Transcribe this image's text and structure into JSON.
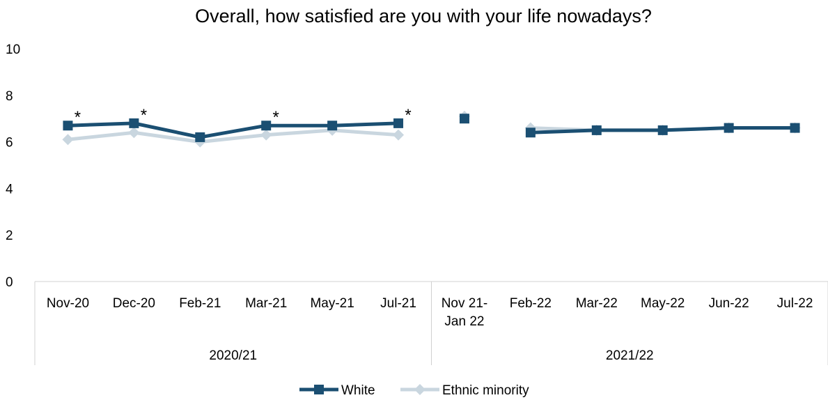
{
  "chart_data": {
    "type": "line",
    "title": "Overall, how satisfied are you with your life nowadays?",
    "xlabel": "",
    "ylabel": "",
    "ylim": [
      0,
      10
    ],
    "y_ticks": [
      "0",
      "2",
      "4",
      "6",
      "8",
      "10"
    ],
    "grid": false,
    "legend_position": "bottom",
    "categories": [
      [
        "Nov-20"
      ],
      [
        "Dec-20"
      ],
      [
        "Feb-21"
      ],
      [
        "Mar-21"
      ],
      [
        "May-21"
      ],
      [
        "Jul-21"
      ],
      [
        "Nov 21-",
        "Jan 22"
      ],
      [
        "Feb-22"
      ],
      [
        "Mar-22"
      ],
      [
        "May-22"
      ],
      [
        "Jun-22"
      ],
      [
        "Jul-22"
      ]
    ],
    "groups": [
      {
        "label": "2020/21",
        "start": 0,
        "end": 5
      },
      {
        "label": "2021/22",
        "start": 6,
        "end": 11
      }
    ],
    "segments": [
      [
        0,
        5
      ],
      [
        6,
        6
      ],
      [
        7,
        11
      ]
    ],
    "series": [
      {
        "name": "White",
        "color": "#1b4f72",
        "marker": "square",
        "values": [
          6.7,
          6.8,
          6.2,
          6.7,
          6.7,
          6.8,
          7.0,
          6.4,
          6.5,
          6.5,
          6.6,
          6.6
        ]
      },
      {
        "name": "Ethnic minority",
        "color": "#c9d6df",
        "marker": "diamond",
        "values": [
          6.1,
          6.4,
          6.0,
          6.3,
          6.5,
          6.3,
          7.1,
          6.6,
          6.5,
          6.5,
          6.6,
          6.6
        ]
      }
    ],
    "annotations": [
      {
        "index": 0,
        "text": "*"
      },
      {
        "index": 1,
        "text": "*"
      },
      {
        "index": 3,
        "text": "*"
      },
      {
        "index": 5,
        "text": "*"
      }
    ]
  }
}
